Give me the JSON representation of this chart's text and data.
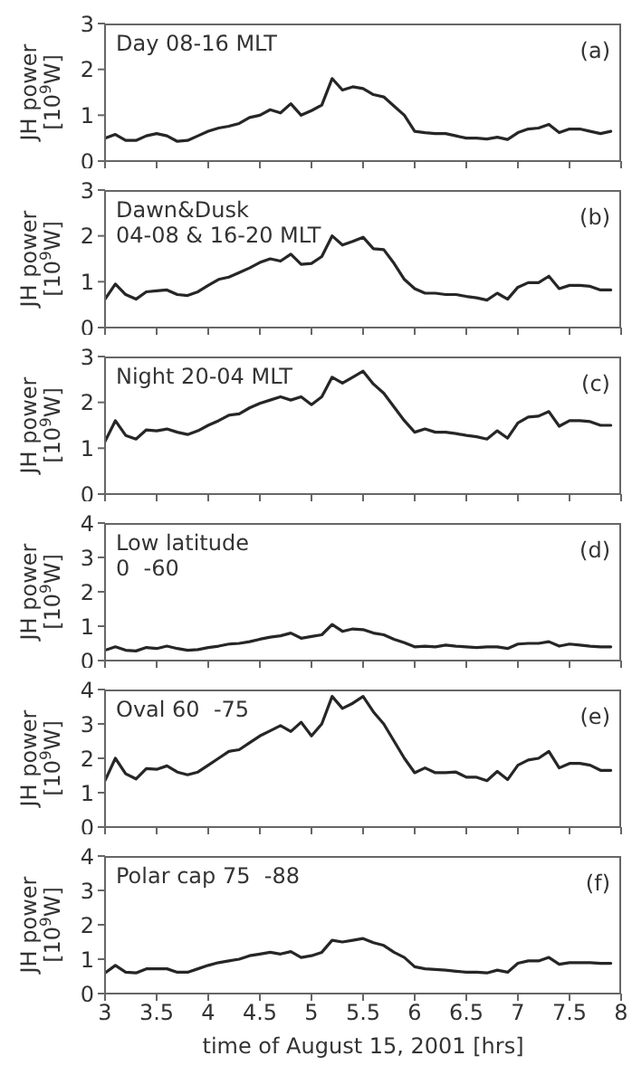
{
  "chart_data": [
    {
      "type": "line",
      "title": "Day 08-16 MLT",
      "ylabel": "JH power\n[10$^{9}$W]",
      "annotations": [
        "(a)"
      ],
      "tick_labels": "y",
      "color": "#262626",
      "xlim": [
        3,
        8
      ],
      "xticks": [
        3,
        3.5,
        4,
        4.5,
        5,
        5.5,
        6,
        6.5,
        7,
        7.5,
        8
      ],
      "ylim": [
        0,
        3
      ],
      "yticks": [
        0,
        1,
        2,
        3
      ],
      "x": [
        3.0,
        3.1,
        3.2,
        3.3,
        3.4,
        3.5,
        3.6,
        3.7,
        3.8,
        3.9,
        4.0,
        4.1,
        4.2,
        4.3,
        4.4,
        4.5,
        4.6,
        4.7,
        4.8,
        4.9,
        5.0,
        5.1,
        5.2,
        5.3,
        5.4,
        5.5,
        5.6,
        5.7,
        5.8,
        5.9,
        6.0,
        6.1,
        6.2,
        6.3,
        6.4,
        6.5,
        6.6,
        6.7,
        6.8,
        6.9,
        7.0,
        7.1,
        7.2,
        7.3,
        7.4,
        7.5,
        7.6,
        7.7,
        7.8,
        7.9
      ],
      "values": [
        0.5,
        0.58,
        0.45,
        0.45,
        0.55,
        0.6,
        0.55,
        0.43,
        0.45,
        0.55,
        0.65,
        0.72,
        0.76,
        0.82,
        0.95,
        1.0,
        1.12,
        1.05,
        1.25,
        1.0,
        1.1,
        1.22,
        1.8,
        1.55,
        1.62,
        1.58,
        1.45,
        1.4,
        1.2,
        1.0,
        0.65,
        0.62,
        0.6,
        0.6,
        0.55,
        0.5,
        0.5,
        0.48,
        0.52,
        0.47,
        0.62,
        0.7,
        0.72,
        0.8,
        0.62,
        0.7,
        0.7,
        0.65,
        0.6,
        0.65
      ]
    },
    {
      "type": "line",
      "title": "Dawn&Dusk\n04-08 & 16-20 MLT",
      "ylabel": "JH power\n[10$^{9}$W]",
      "annotations": [
        "(b)"
      ],
      "tick_labels": "y",
      "color": "#262626",
      "xlim": [
        3,
        8
      ],
      "xticks": [
        3,
        3.5,
        4,
        4.5,
        5,
        5.5,
        6,
        6.5,
        7,
        7.5,
        8
      ],
      "ylim": [
        0,
        3
      ],
      "yticks": [
        0,
        1,
        2,
        3
      ],
      "x": [
        3.0,
        3.1,
        3.2,
        3.3,
        3.4,
        3.5,
        3.6,
        3.7,
        3.8,
        3.9,
        4.0,
        4.1,
        4.2,
        4.3,
        4.4,
        4.5,
        4.6,
        4.7,
        4.8,
        4.9,
        5.0,
        5.1,
        5.2,
        5.3,
        5.4,
        5.5,
        5.6,
        5.7,
        5.8,
        5.9,
        6.0,
        6.1,
        6.2,
        6.3,
        6.4,
        6.5,
        6.6,
        6.7,
        6.8,
        6.9,
        7.0,
        7.1,
        7.2,
        7.3,
        7.4,
        7.5,
        7.6,
        7.7,
        7.8,
        7.9
      ],
      "values": [
        0.62,
        0.95,
        0.72,
        0.62,
        0.78,
        0.8,
        0.82,
        0.72,
        0.7,
        0.78,
        0.92,
        1.05,
        1.1,
        1.2,
        1.3,
        1.42,
        1.5,
        1.45,
        1.6,
        1.38,
        1.4,
        1.55,
        2.0,
        1.8,
        1.88,
        1.97,
        1.72,
        1.7,
        1.4,
        1.05,
        0.85,
        0.75,
        0.75,
        0.72,
        0.72,
        0.68,
        0.65,
        0.6,
        0.75,
        0.62,
        0.88,
        0.98,
        0.98,
        1.12,
        0.85,
        0.92,
        0.92,
        0.9,
        0.82,
        0.82
      ]
    },
    {
      "type": "line",
      "title": "Night 20-04 MLT",
      "ylabel": "JH power\n[10$^{9}$W]",
      "annotations": [
        "(c)"
      ],
      "tick_labels": "y",
      "color": "#262626",
      "xlim": [
        3,
        8
      ],
      "xticks": [
        3,
        3.5,
        4,
        4.5,
        5,
        5.5,
        6,
        6.5,
        7,
        7.5,
        8
      ],
      "ylim": [
        0,
        3
      ],
      "yticks": [
        0,
        1,
        2,
        3
      ],
      "x": [
        3.0,
        3.1,
        3.2,
        3.3,
        3.4,
        3.5,
        3.6,
        3.7,
        3.8,
        3.9,
        4.0,
        4.1,
        4.2,
        4.3,
        4.4,
        4.5,
        4.6,
        4.7,
        4.8,
        4.9,
        5.0,
        5.1,
        5.2,
        5.3,
        5.4,
        5.5,
        5.6,
        5.7,
        5.8,
        5.9,
        6.0,
        6.1,
        6.2,
        6.3,
        6.4,
        6.5,
        6.6,
        6.7,
        6.8,
        6.9,
        7.0,
        7.1,
        7.2,
        7.3,
        7.4,
        7.5,
        7.6,
        7.7,
        7.8,
        7.9
      ],
      "values": [
        1.15,
        1.6,
        1.28,
        1.2,
        1.4,
        1.38,
        1.42,
        1.35,
        1.3,
        1.38,
        1.5,
        1.6,
        1.72,
        1.75,
        1.88,
        1.98,
        2.05,
        2.12,
        2.05,
        2.12,
        1.95,
        2.12,
        2.55,
        2.42,
        2.55,
        2.68,
        2.4,
        2.2,
        1.9,
        1.6,
        1.35,
        1.42,
        1.35,
        1.35,
        1.32,
        1.28,
        1.25,
        1.2,
        1.38,
        1.22,
        1.55,
        1.68,
        1.7,
        1.8,
        1.48,
        1.6,
        1.6,
        1.58,
        1.5,
        1.5
      ]
    },
    {
      "type": "line",
      "title": "Low latitude\n0  -60",
      "ylabel": "JH power\n[10$^{9}$W]",
      "annotations": [
        "(d)"
      ],
      "tick_labels": "y",
      "color": "#262626",
      "xlim": [
        3,
        8
      ],
      "xticks": [
        3,
        3.5,
        4,
        4.5,
        5,
        5.5,
        6,
        6.5,
        7,
        7.5,
        8
      ],
      "ylim": [
        0,
        4
      ],
      "yticks": [
        0,
        1,
        2,
        3,
        4
      ],
      "x": [
        3.0,
        3.1,
        3.2,
        3.3,
        3.4,
        3.5,
        3.6,
        3.7,
        3.8,
        3.9,
        4.0,
        4.1,
        4.2,
        4.3,
        4.4,
        4.5,
        4.6,
        4.7,
        4.8,
        4.9,
        5.0,
        5.1,
        5.2,
        5.3,
        5.4,
        5.5,
        5.6,
        5.7,
        5.8,
        5.9,
        6.0,
        6.1,
        6.2,
        6.3,
        6.4,
        6.5,
        6.6,
        6.7,
        6.8,
        6.9,
        7.0,
        7.1,
        7.2,
        7.3,
        7.4,
        7.5,
        7.6,
        7.7,
        7.8,
        7.9
      ],
      "values": [
        0.3,
        0.4,
        0.3,
        0.28,
        0.38,
        0.35,
        0.42,
        0.35,
        0.3,
        0.32,
        0.38,
        0.42,
        0.48,
        0.5,
        0.55,
        0.62,
        0.68,
        0.72,
        0.8,
        0.65,
        0.7,
        0.75,
        1.05,
        0.85,
        0.92,
        0.9,
        0.8,
        0.75,
        0.62,
        0.52,
        0.4,
        0.42,
        0.4,
        0.45,
        0.42,
        0.4,
        0.38,
        0.4,
        0.4,
        0.35,
        0.48,
        0.5,
        0.5,
        0.55,
        0.42,
        0.48,
        0.45,
        0.42,
        0.4,
        0.4
      ]
    },
    {
      "type": "line",
      "title": "Oval 60  -75",
      "ylabel": "JH power\n[10$^{9}$W]",
      "annotations": [
        "(e)"
      ],
      "tick_labels": "y",
      "color": "#262626",
      "xlim": [
        3,
        8
      ],
      "xticks": [
        3,
        3.5,
        4,
        4.5,
        5,
        5.5,
        6,
        6.5,
        7,
        7.5,
        8
      ],
      "ylim": [
        0,
        4
      ],
      "yticks": [
        0,
        1,
        2,
        3,
        4
      ],
      "x": [
        3.0,
        3.1,
        3.2,
        3.3,
        3.4,
        3.5,
        3.6,
        3.7,
        3.8,
        3.9,
        4.0,
        4.1,
        4.2,
        4.3,
        4.4,
        4.5,
        4.6,
        4.7,
        4.8,
        4.9,
        5.0,
        5.1,
        5.2,
        5.3,
        5.4,
        5.5,
        5.6,
        5.7,
        5.8,
        5.9,
        6.0,
        6.1,
        6.2,
        6.3,
        6.4,
        6.5,
        6.6,
        6.7,
        6.8,
        6.9,
        7.0,
        7.1,
        7.2,
        7.3,
        7.4,
        7.5,
        7.6,
        7.7,
        7.8,
        7.9
      ],
      "values": [
        1.35,
        2.0,
        1.55,
        1.4,
        1.7,
        1.68,
        1.78,
        1.6,
        1.52,
        1.6,
        1.8,
        2.0,
        2.2,
        2.25,
        2.45,
        2.65,
        2.8,
        2.95,
        2.78,
        3.05,
        2.65,
        3.0,
        3.8,
        3.45,
        3.6,
        3.8,
        3.35,
        3.0,
        2.5,
        2.0,
        1.58,
        1.72,
        1.58,
        1.58,
        1.6,
        1.45,
        1.45,
        1.35,
        1.62,
        1.38,
        1.8,
        1.95,
        2.0,
        2.2,
        1.72,
        1.85,
        1.85,
        1.8,
        1.65,
        1.65
      ]
    },
    {
      "type": "line",
      "title": "Polar cap 75  -88",
      "ylabel": "JH power\n[10$^{9}$W]",
      "xlabel": "time of August 15, 2001 [hrs]",
      "annotations": [
        "(f)"
      ],
      "color": "#262626",
      "xlim": [
        3,
        8
      ],
      "xticks": [
        3,
        3.5,
        4,
        4.5,
        5,
        5.5,
        6,
        6.5,
        7,
        7.5,
        8
      ],
      "ylim": [
        0,
        4
      ],
      "yticks": [
        0,
        1,
        2,
        3,
        4
      ],
      "x": [
        3.0,
        3.1,
        3.2,
        3.3,
        3.4,
        3.5,
        3.6,
        3.7,
        3.8,
        3.9,
        4.0,
        4.1,
        4.2,
        4.3,
        4.4,
        4.5,
        4.6,
        4.7,
        4.8,
        4.9,
        5.0,
        5.1,
        5.2,
        5.3,
        5.4,
        5.5,
        5.6,
        5.7,
        5.8,
        5.9,
        6.0,
        6.1,
        6.2,
        6.3,
        6.4,
        6.5,
        6.6,
        6.7,
        6.8,
        6.9,
        7.0,
        7.1,
        7.2,
        7.3,
        7.4,
        7.5,
        7.6,
        7.7,
        7.8,
        7.9
      ],
      "values": [
        0.6,
        0.82,
        0.62,
        0.6,
        0.72,
        0.72,
        0.72,
        0.62,
        0.62,
        0.72,
        0.82,
        0.9,
        0.95,
        1.0,
        1.1,
        1.15,
        1.2,
        1.15,
        1.22,
        1.05,
        1.1,
        1.2,
        1.55,
        1.5,
        1.55,
        1.6,
        1.48,
        1.4,
        1.2,
        1.05,
        0.78,
        0.72,
        0.7,
        0.68,
        0.65,
        0.62,
        0.62,
        0.6,
        0.68,
        0.62,
        0.88,
        0.95,
        0.95,
        1.05,
        0.85,
        0.9,
        0.9,
        0.9,
        0.88,
        0.88
      ]
    }
  ]
}
